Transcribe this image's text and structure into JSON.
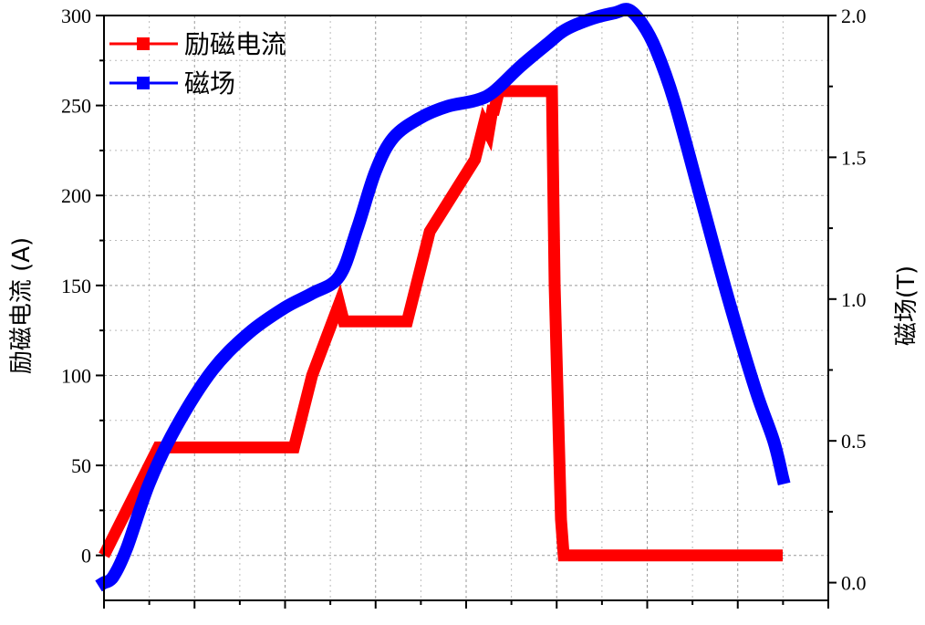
{
  "chart_data": {
    "type": "line",
    "xlabel": "",
    "x_tick_count": 9,
    "ylabel": "励磁电流 (A)",
    "y2label": "磁场(T)",
    "ylim": [
      -25,
      300
    ],
    "y2lim": [
      -0.0625,
      2.0
    ],
    "yticks": [
      0,
      50,
      100,
      150,
      200,
      250,
      300
    ],
    "y2ticks": [
      0.0,
      0.5,
      1.0,
      1.5,
      2.0
    ],
    "ytick_labels": [
      "0",
      "50",
      "100",
      "150",
      "200",
      "250",
      "300"
    ],
    "y2tick_labels": [
      "0.0",
      "0.5",
      "1.0",
      "1.5",
      "2.0"
    ],
    "grid": true,
    "legend_position": "top-left",
    "series": [
      {
        "name": "励磁电流",
        "axis": "left",
        "color": "#ff0000",
        "x": [
          0,
          0.3,
          0.6,
          0.8,
          2.1,
          2.2,
          2.3,
          2.6,
          2.65,
          2.65,
          3.35,
          3.45,
          3.5,
          3.55,
          3.6,
          3.6,
          4.1,
          4.2,
          4.25,
          4.3,
          4.3,
          4.35,
          4.35,
          4.4,
          4.5,
          4.8,
          4.95,
          4.98,
          5.05,
          5.08,
          5.1
        ],
        "y": [
          0,
          30,
          60,
          60,
          60,
          80,
          100,
          140,
          130,
          130,
          130,
          150,
          160,
          170,
          180,
          180,
          220,
          240,
          235,
          250,
          245,
          255,
          258,
          258,
          258,
          258,
          258,
          150,
          20,
          0,
          0
        ],
        "x_end": 7.5,
        "y_end": 0
      },
      {
        "name": "磁场",
        "axis": "right",
        "color": "#0000ff",
        "x": [
          0,
          0.1,
          0.25,
          0.5,
          0.8,
          1.2,
          1.6,
          2.0,
          2.3,
          2.6,
          2.8,
          3.0,
          3.2,
          3.5,
          3.8,
          4.1,
          4.3,
          4.6,
          4.9,
          5.1,
          5.4,
          5.65,
          5.8,
          5.95,
          6.1,
          6.3,
          6.6,
          6.9,
          7.2,
          7.4,
          7.5
        ],
        "y": [
          0.0,
          0.02,
          0.12,
          0.35,
          0.55,
          0.75,
          0.88,
          0.97,
          1.02,
          1.08,
          1.25,
          1.45,
          1.57,
          1.64,
          1.68,
          1.7,
          1.73,
          1.82,
          1.9,
          1.95,
          1.99,
          2.01,
          2.02,
          1.97,
          1.88,
          1.7,
          1.35,
          1.0,
          0.68,
          0.5,
          0.37
        ]
      }
    ]
  }
}
